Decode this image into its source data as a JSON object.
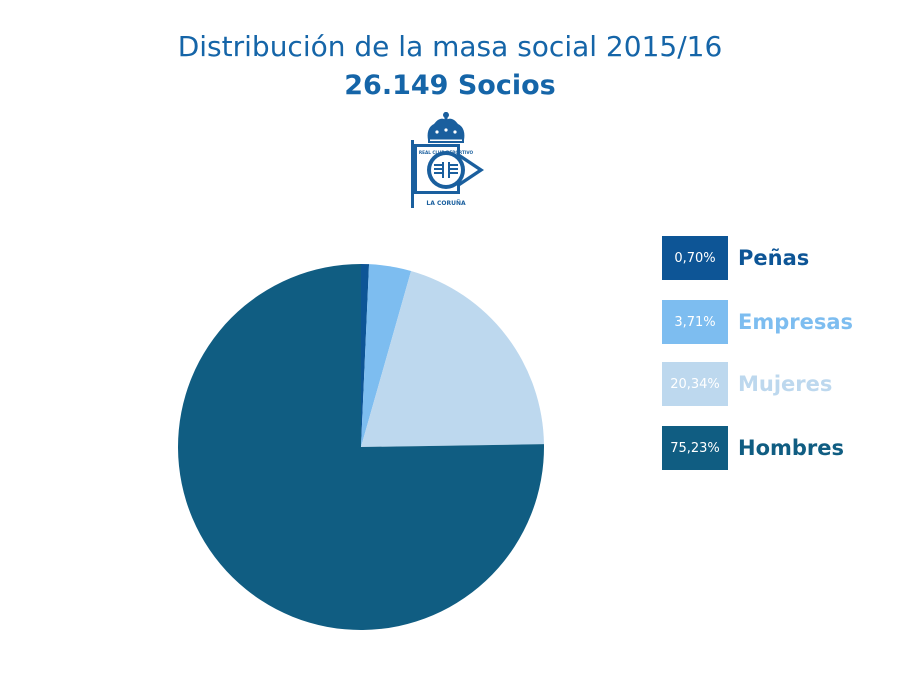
{
  "header": {
    "title": "Distribución de la masa social 2015/16",
    "subtitle": "26.149 Socios"
  },
  "logo": {
    "name": "club-crest",
    "lettering": [
      "REAL CLUB DEPORTIVO",
      "LA CORUÑA"
    ]
  },
  "colors": {
    "accent": "#1565a8",
    "penas": "#0d5596",
    "empresas": "#7dbdf0",
    "mujeres": "#bdd8ee",
    "hombres": "#105d82"
  },
  "chart_data": {
    "type": "pie",
    "title": "Distribución de la masa social 2015/16",
    "subtitle": "26.149 Socios",
    "legend_position": "right",
    "slices": [
      {
        "name": "Peñas",
        "value": 0.7,
        "label": "0,70%",
        "color": "#0d5596"
      },
      {
        "name": "Empresas",
        "value": 3.71,
        "label": "3,71%",
        "color": "#7dbdf0"
      },
      {
        "name": "Mujeres",
        "value": 20.34,
        "label": "20,34%",
        "color": "#bdd8ee"
      },
      {
        "name": "Hombres",
        "value": 75.23,
        "label": "75,23%",
        "color": "#105d82"
      }
    ]
  }
}
